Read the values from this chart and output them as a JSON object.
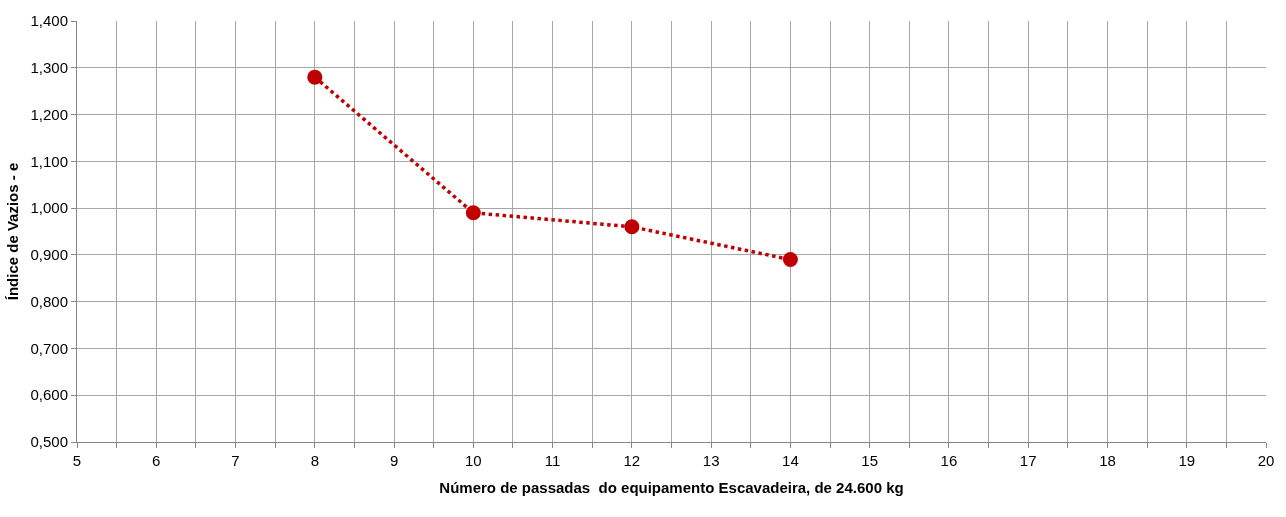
{
  "chart_data": {
    "type": "line",
    "xlabel": "Número de passadas  do equipamento Escavadeira, de 24.600 kg",
    "ylabel": "Índice de Vazios - e",
    "x": [
      8,
      10,
      12,
      14
    ],
    "series": [
      {
        "color": "#c00000",
        "values": [
          1.28,
          0.99,
          0.96,
          0.89
        ]
      }
    ],
    "xlim": [
      5,
      20
    ],
    "xticks": [
      5,
      {
        "value": 5.5,
        "label": null
      },
      6,
      {
        "value": 6.5,
        "label": null
      },
      7,
      {
        "value": 7.5,
        "label": null
      },
      8,
      {
        "value": 8.5,
        "label": null
      },
      9,
      {
        "value": 9.5,
        "label": null
      },
      10,
      {
        "value": 10.5,
        "label": null
      },
      11,
      {
        "value": 11.5,
        "label": null
      },
      12,
      {
        "value": 12.5,
        "label": null
      },
      13,
      {
        "value": 13.5,
        "label": null
      },
      14,
      {
        "value": 14.5,
        "label": null
      },
      15,
      {
        "value": 15.5,
        "label": null
      },
      16,
      {
        "value": 16.5,
        "label": null
      },
      17,
      {
        "value": 17.5,
        "label": null
      },
      18,
      {
        "value": 18.5,
        "label": null
      },
      19,
      {
        "value": 19.5,
        "label": null
      },
      20
    ],
    "ylim": [
      0.5,
      1.4
    ],
    "yticks": [
      {
        "value": 0.5,
        "label": "0,500"
      },
      {
        "value": 0.6,
        "label": "0,600"
      },
      {
        "value": 0.7,
        "label": "0,700"
      },
      {
        "value": 0.8,
        "label": "0,800"
      },
      {
        "value": 0.9,
        "label": "0,900"
      },
      {
        "value": 1.0,
        "label": "1,000"
      },
      {
        "value": 1.1,
        "label": "1,100"
      },
      {
        "value": 1.2,
        "label": "1,200"
      },
      {
        "value": 1.3,
        "label": "1,300"
      },
      {
        "value": 1.4,
        "label": "1,400"
      }
    ],
    "grid": true,
    "marker": "circle",
    "line_style": "dotted"
  }
}
